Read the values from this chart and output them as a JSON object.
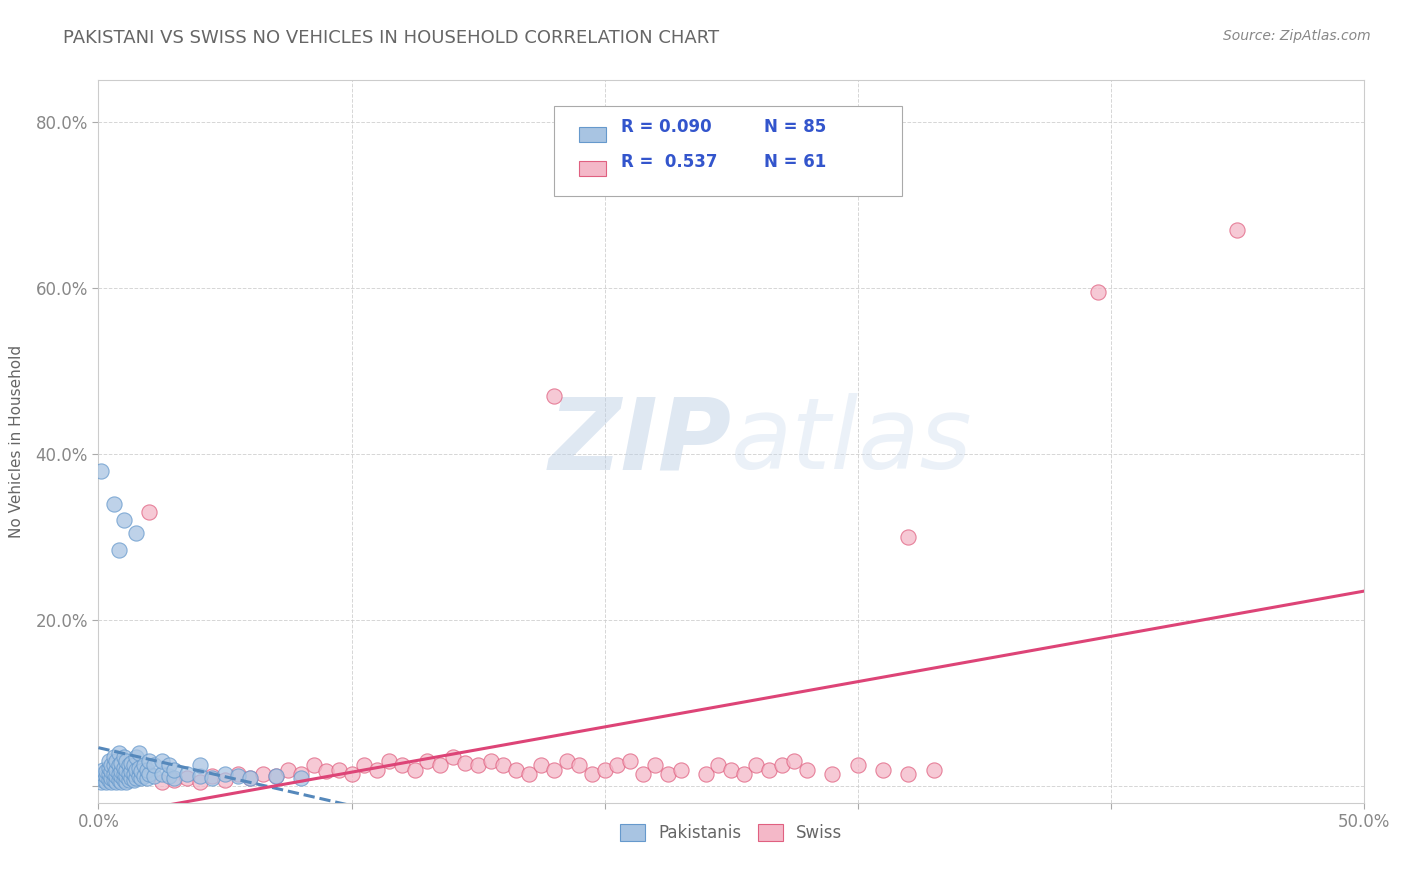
{
  "title": "PAKISTANI VS SWISS NO VEHICLES IN HOUSEHOLD CORRELATION CHART",
  "source": "Source: ZipAtlas.com",
  "ylabel": "No Vehicles in Household",
  "xlim": [
    0.0,
    0.5
  ],
  "ylim": [
    -0.02,
    0.85
  ],
  "xtick_positions": [
    0.0,
    0.1,
    0.2,
    0.3,
    0.4,
    0.5
  ],
  "xticklabels": [
    "0.0%",
    "",
    "",
    "",
    "",
    "50.0%"
  ],
  "ytick_positions": [
    0.0,
    0.2,
    0.4,
    0.6,
    0.8
  ],
  "yticklabels": [
    "",
    "20.0%",
    "40.0%",
    "60.0%",
    "80.0%"
  ],
  "watermark_zip": "ZIP",
  "watermark_atlas": "atlas",
  "legend_r1": "R = 0.090",
  "legend_n1": "N = 85",
  "legend_r2": "R =  0.537",
  "legend_n2": "N = 61",
  "pakistanis_fill": "#a8c4e2",
  "pakistanis_edge": "#6699cc",
  "swiss_fill": "#f4b8c8",
  "swiss_edge": "#e06080",
  "pak_line_color": "#5588bb",
  "swiss_line_color": "#dd4477",
  "title_color": "#666666",
  "source_color": "#888888",
  "axis_label_color": "#666666",
  "tick_color": "#888888",
  "legend_text_color": "#3355cc",
  "legend_r_color": "#3355cc",
  "grid_color": "#cccccc",
  "bg_color": "#ffffff",
  "pakistanis_scatter": [
    [
      0.001,
      0.005
    ],
    [
      0.001,
      0.01
    ],
    [
      0.002,
      0.008
    ],
    [
      0.002,
      0.015
    ],
    [
      0.002,
      0.02
    ],
    [
      0.003,
      0.005
    ],
    [
      0.003,
      0.012
    ],
    [
      0.003,
      0.018
    ],
    [
      0.004,
      0.008
    ],
    [
      0.004,
      0.015
    ],
    [
      0.004,
      0.022
    ],
    [
      0.004,
      0.03
    ],
    [
      0.005,
      0.005
    ],
    [
      0.005,
      0.01
    ],
    [
      0.005,
      0.018
    ],
    [
      0.005,
      0.025
    ],
    [
      0.006,
      0.008
    ],
    [
      0.006,
      0.015
    ],
    [
      0.006,
      0.025
    ],
    [
      0.006,
      0.035
    ],
    [
      0.007,
      0.005
    ],
    [
      0.007,
      0.012
    ],
    [
      0.007,
      0.02
    ],
    [
      0.007,
      0.03
    ],
    [
      0.008,
      0.008
    ],
    [
      0.008,
      0.015
    ],
    [
      0.008,
      0.025
    ],
    [
      0.008,
      0.04
    ],
    [
      0.009,
      0.005
    ],
    [
      0.009,
      0.012
    ],
    [
      0.009,
      0.018
    ],
    [
      0.009,
      0.028
    ],
    [
      0.01,
      0.008
    ],
    [
      0.01,
      0.015
    ],
    [
      0.01,
      0.022
    ],
    [
      0.01,
      0.035
    ],
    [
      0.011,
      0.005
    ],
    [
      0.011,
      0.012
    ],
    [
      0.011,
      0.02
    ],
    [
      0.011,
      0.03
    ],
    [
      0.012,
      0.008
    ],
    [
      0.012,
      0.015
    ],
    [
      0.012,
      0.025
    ],
    [
      0.013,
      0.01
    ],
    [
      0.013,
      0.018
    ],
    [
      0.013,
      0.028
    ],
    [
      0.014,
      0.008
    ],
    [
      0.014,
      0.015
    ],
    [
      0.014,
      0.025
    ],
    [
      0.015,
      0.01
    ],
    [
      0.015,
      0.02
    ],
    [
      0.015,
      0.035
    ],
    [
      0.016,
      0.012
    ],
    [
      0.016,
      0.022
    ],
    [
      0.016,
      0.04
    ],
    [
      0.017,
      0.01
    ],
    [
      0.017,
      0.018
    ],
    [
      0.018,
      0.012
    ],
    [
      0.018,
      0.025
    ],
    [
      0.019,
      0.01
    ],
    [
      0.019,
      0.02
    ],
    [
      0.02,
      0.015
    ],
    [
      0.02,
      0.03
    ],
    [
      0.022,
      0.012
    ],
    [
      0.022,
      0.025
    ],
    [
      0.025,
      0.015
    ],
    [
      0.025,
      0.03
    ],
    [
      0.028,
      0.012
    ],
    [
      0.028,
      0.025
    ],
    [
      0.03,
      0.01
    ],
    [
      0.03,
      0.02
    ],
    [
      0.035,
      0.015
    ],
    [
      0.04,
      0.012
    ],
    [
      0.04,
      0.025
    ],
    [
      0.045,
      0.01
    ],
    [
      0.05,
      0.015
    ],
    [
      0.055,
      0.012
    ],
    [
      0.06,
      0.01
    ],
    [
      0.07,
      0.012
    ],
    [
      0.08,
      0.01
    ],
    [
      0.001,
      0.38
    ],
    [
      0.006,
      0.34
    ],
    [
      0.01,
      0.32
    ],
    [
      0.015,
      0.305
    ],
    [
      0.008,
      0.285
    ]
  ],
  "swiss_scatter": [
    [
      0.025,
      0.005
    ],
    [
      0.03,
      0.008
    ],
    [
      0.035,
      0.01
    ],
    [
      0.04,
      0.005
    ],
    [
      0.045,
      0.012
    ],
    [
      0.05,
      0.008
    ],
    [
      0.055,
      0.015
    ],
    [
      0.06,
      0.01
    ],
    [
      0.065,
      0.015
    ],
    [
      0.07,
      0.012
    ],
    [
      0.075,
      0.02
    ],
    [
      0.08,
      0.015
    ],
    [
      0.085,
      0.025
    ],
    [
      0.09,
      0.018
    ],
    [
      0.095,
      0.02
    ],
    [
      0.1,
      0.015
    ],
    [
      0.105,
      0.025
    ],
    [
      0.11,
      0.02
    ],
    [
      0.115,
      0.03
    ],
    [
      0.12,
      0.025
    ],
    [
      0.125,
      0.02
    ],
    [
      0.13,
      0.03
    ],
    [
      0.135,
      0.025
    ],
    [
      0.14,
      0.035
    ],
    [
      0.145,
      0.028
    ],
    [
      0.15,
      0.025
    ],
    [
      0.155,
      0.03
    ],
    [
      0.16,
      0.025
    ],
    [
      0.165,
      0.02
    ],
    [
      0.17,
      0.015
    ],
    [
      0.175,
      0.025
    ],
    [
      0.18,
      0.02
    ],
    [
      0.185,
      0.03
    ],
    [
      0.19,
      0.025
    ],
    [
      0.195,
      0.015
    ],
    [
      0.2,
      0.02
    ],
    [
      0.205,
      0.025
    ],
    [
      0.21,
      0.03
    ],
    [
      0.215,
      0.015
    ],
    [
      0.22,
      0.025
    ],
    [
      0.225,
      0.015
    ],
    [
      0.23,
      0.02
    ],
    [
      0.24,
      0.015
    ],
    [
      0.245,
      0.025
    ],
    [
      0.25,
      0.02
    ],
    [
      0.255,
      0.015
    ],
    [
      0.26,
      0.025
    ],
    [
      0.265,
      0.02
    ],
    [
      0.27,
      0.025
    ],
    [
      0.275,
      0.03
    ],
    [
      0.28,
      0.02
    ],
    [
      0.29,
      0.015
    ],
    [
      0.3,
      0.025
    ],
    [
      0.31,
      0.02
    ],
    [
      0.32,
      0.015
    ],
    [
      0.33,
      0.02
    ],
    [
      0.02,
      0.33
    ],
    [
      0.18,
      0.47
    ],
    [
      0.32,
      0.3
    ],
    [
      0.395,
      0.595
    ],
    [
      0.45,
      0.67
    ]
  ]
}
